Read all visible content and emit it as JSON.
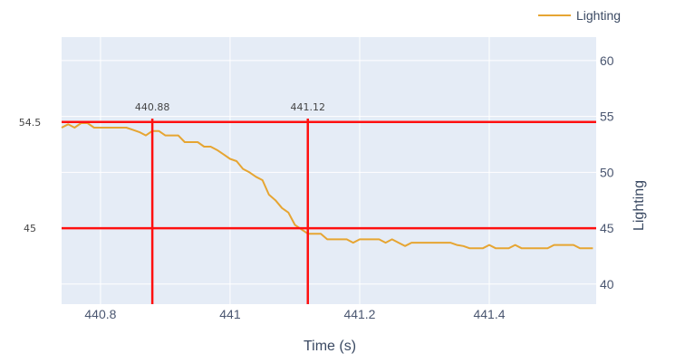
{
  "chart_data": {
    "type": "line",
    "xlabel": "Time (s)",
    "ylabel": "Lighting",
    "xlim": [
      440.74,
      441.565
    ],
    "ylim": [
      38.2,
      62.1
    ],
    "x_ticks": [
      440.8,
      441,
      441.2,
      441.4
    ],
    "y_ticks": [
      40,
      45,
      50,
      55,
      60
    ],
    "grid": true,
    "legend_position": "top-right",
    "series": [
      {
        "name": "Lighting",
        "color": "#E6A532",
        "x": [
          440.74,
          440.75,
          440.76,
          440.77,
          440.78,
          440.79,
          440.8,
          440.81,
          440.82,
          440.83,
          440.84,
          440.85,
          440.86,
          440.87,
          440.88,
          440.89,
          440.9,
          440.91,
          440.92,
          440.93,
          440.94,
          440.95,
          440.96,
          440.97,
          440.98,
          440.99,
          441.0,
          441.01,
          441.02,
          441.03,
          441.04,
          441.05,
          441.06,
          441.07,
          441.08,
          441.09,
          441.1,
          441.11,
          441.12,
          441.13,
          441.14,
          441.15,
          441.16,
          441.17,
          441.18,
          441.19,
          441.2,
          441.21,
          441.22,
          441.23,
          441.24,
          441.25,
          441.26,
          441.27,
          441.28,
          441.29,
          441.3,
          441.31,
          441.32,
          441.33,
          441.34,
          441.35,
          441.36,
          441.37,
          441.38,
          441.39,
          441.4,
          441.41,
          441.42,
          441.43,
          441.44,
          441.45,
          441.46,
          441.47,
          441.48,
          441.49,
          441.5,
          441.51,
          441.52,
          441.53,
          441.54,
          441.55,
          441.56
        ],
        "y": [
          54.0,
          54.3,
          54.0,
          54.4,
          54.4,
          54.0,
          54.0,
          54.0,
          54.0,
          54.0,
          54.0,
          53.8,
          53.6,
          53.3,
          53.7,
          53.7,
          53.3,
          53.3,
          53.3,
          52.7,
          52.7,
          52.7,
          52.3,
          52.3,
          52.0,
          51.6,
          51.2,
          51.0,
          50.3,
          50.0,
          49.6,
          49.3,
          48.0,
          47.5,
          46.8,
          46.4,
          45.3,
          44.9,
          44.5,
          44.5,
          44.5,
          44.0,
          44.0,
          44.0,
          44.0,
          43.7,
          44.0,
          44.0,
          44.0,
          44.0,
          43.7,
          44.0,
          43.7,
          43.4,
          43.7,
          43.7,
          43.7,
          43.7,
          43.7,
          43.7,
          43.7,
          43.5,
          43.4,
          43.2,
          43.2,
          43.2,
          43.5,
          43.2,
          43.2,
          43.2,
          43.5,
          43.2,
          43.2,
          43.2,
          43.2,
          43.2,
          43.5,
          43.5,
          43.5,
          43.5,
          43.2,
          43.2,
          43.2
        ]
      }
    ],
    "hlines": [
      {
        "y": 54.5,
        "label": "54.5",
        "color": "#FF1010"
      },
      {
        "y": 45,
        "label": "45",
        "color": "#FF1010"
      }
    ],
    "vlines": [
      {
        "x": 440.88,
        "label": "440.88",
        "color": "#FF1010"
      },
      {
        "x": 441.12,
        "label": "441.12",
        "color": "#FF1010"
      }
    ],
    "plot_bg": "#E5ECF6",
    "grid_color": "#FFFFFF"
  }
}
